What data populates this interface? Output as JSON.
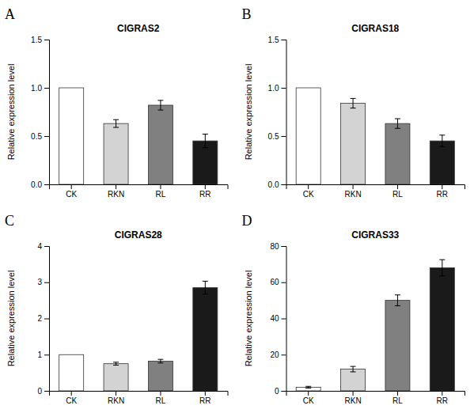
{
  "chart_data": [
    {
      "type": "bar",
      "label": "A",
      "title": "CIGRAS2",
      "ylabel": "Relative expression level",
      "categories": [
        "CK",
        "RKN",
        "RL",
        "RR"
      ],
      "values": [
        1.0,
        0.63,
        0.82,
        0.45
      ],
      "errors": [
        0.0,
        0.04,
        0.05,
        0.07
      ],
      "colors": [
        "#ffffff",
        "#d3d3d3",
        "#808080",
        "#1a1a1a"
      ],
      "ylim": [
        0,
        1.5
      ],
      "yticks": [
        {
          "value": 0.0,
          "label": "0.0"
        },
        0.5,
        {
          "value": 1.0,
          "label": "1.0"
        },
        1.5
      ]
    },
    {
      "type": "bar",
      "label": "B",
      "title": "CIGRAS18",
      "ylabel": "Relative expression level",
      "categories": [
        "CK",
        "RKN",
        "RL",
        "RR"
      ],
      "values": [
        1.0,
        0.84,
        0.63,
        0.45
      ],
      "errors": [
        0.0,
        0.05,
        0.05,
        0.06
      ],
      "colors": [
        "#ffffff",
        "#d3d3d3",
        "#808080",
        "#1a1a1a"
      ],
      "ylim": [
        0,
        1.5
      ],
      "yticks": [
        {
          "value": 0.0,
          "label": "0.0"
        },
        0.5,
        {
          "value": 1.0,
          "label": "1.0"
        },
        1.5
      ]
    },
    {
      "type": "bar",
      "label": "C",
      "title": "CIGRAS28",
      "ylabel": "Relative expression level",
      "categories": [
        "CK",
        "RKN",
        "RL",
        "RR"
      ],
      "values": [
        1.0,
        0.75,
        0.82,
        2.85
      ],
      "errors": [
        0.0,
        0.04,
        0.05,
        0.18
      ],
      "colors": [
        "#ffffff",
        "#d3d3d3",
        "#808080",
        "#1a1a1a"
      ],
      "ylim": [
        0,
        4
      ],
      "yticks": [
        0,
        1,
        2,
        3,
        4
      ]
    },
    {
      "type": "bar",
      "label": "D",
      "title": "CIGRAS33",
      "ylabel": "Relative expression level",
      "categories": [
        "CK",
        "RKN",
        "RL",
        "RR"
      ],
      "values": [
        2.0,
        12.0,
        50.0,
        68.0
      ],
      "errors": [
        0.5,
        1.5,
        3.0,
        4.5
      ],
      "colors": [
        "#ffffff",
        "#d3d3d3",
        "#808080",
        "#1a1a1a"
      ],
      "ylim": [
        0,
        80
      ],
      "yticks": [
        0,
        20,
        40,
        60,
        80
      ]
    }
  ]
}
